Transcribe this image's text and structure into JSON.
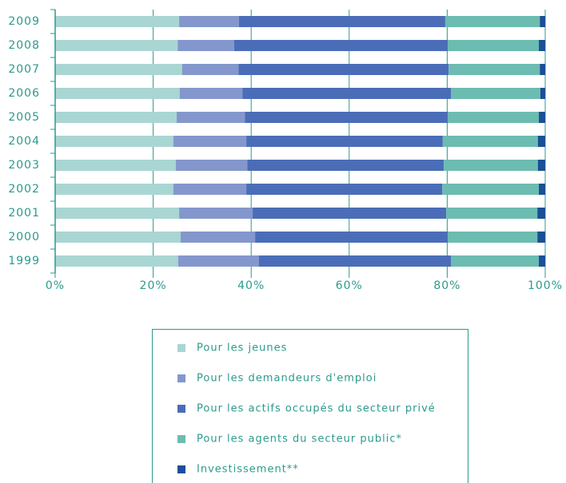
{
  "chart_data": {
    "type": "stacked-barh",
    "categories": [
      "1999",
      "2000",
      "2001",
      "2002",
      "2003",
      "2004",
      "2005",
      "2006",
      "2007",
      "2008",
      "2009"
    ],
    "series": [
      {
        "name": "Pour les jeunes",
        "color": "#a9d6d3",
        "values": [
          25.1,
          25.6,
          25.3,
          24.1,
          24.6,
          24.1,
          24.8,
          25.4,
          25.9,
          25.0,
          25.3
        ]
      },
      {
        "name": "Pour les demandeurs d'emploi",
        "color": "#8497cd",
        "values": [
          16.5,
          15.2,
          15.0,
          14.9,
          14.6,
          14.9,
          13.9,
          12.8,
          11.5,
          11.5,
          12.2
        ]
      },
      {
        "name": "Pour les actifs occupés du secteur privé",
        "color": "#4b6db8",
        "values": [
          39.2,
          39.3,
          39.5,
          40.0,
          40.1,
          40.1,
          41.4,
          42.6,
          42.9,
          43.6,
          42.1
        ]
      },
      {
        "name": "Pour les agents du secteur public*",
        "color": "#6cbcb1",
        "values": [
          17.9,
          18.3,
          18.6,
          19.7,
          19.2,
          19.4,
          18.6,
          18.2,
          18.6,
          18.6,
          19.3
        ]
      },
      {
        "name": "Investissement**",
        "color": "#1b4f96",
        "values": [
          1.3,
          1.6,
          1.6,
          1.3,
          1.5,
          1.5,
          1.3,
          1.0,
          1.1,
          1.3,
          1.1
        ]
      }
    ],
    "xlim": [
      0,
      100
    ],
    "xticks": [
      {
        "value": 0,
        "label": "0%"
      },
      {
        "value": 20,
        "label": "20%"
      },
      {
        "value": 40,
        "label": "40%"
      },
      {
        "value": 60,
        "label": "60%"
      },
      {
        "value": 80,
        "label": "80%"
      },
      {
        "value": 100,
        "label": "100%"
      }
    ],
    "grid": true
  }
}
